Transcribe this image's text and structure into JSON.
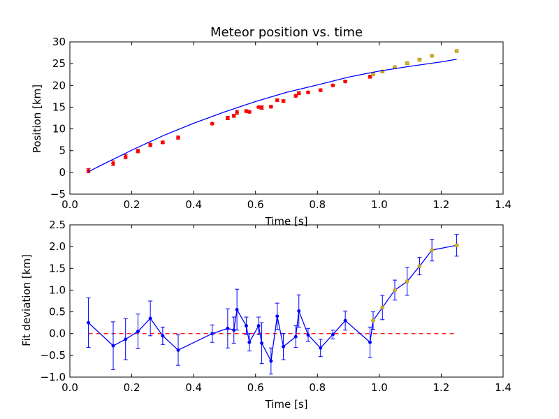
{
  "chart_data": [
    {
      "type": "scatter",
      "title": "Meteor position vs. time",
      "xlabel": "Time [s]",
      "ylabel": "Position [km]",
      "xlim": [
        0.0,
        1.4
      ],
      "ylim": [
        -5,
        30
      ],
      "xticks": [
        "0.0",
        "0.2",
        "0.4",
        "0.6",
        "0.8",
        "1.0",
        "1.2",
        "1.4"
      ],
      "yticks": [
        "−5",
        "0",
        "5",
        "10",
        "15",
        "20",
        "25",
        "30"
      ],
      "xtick_values": [
        0.0,
        0.2,
        0.4,
        0.6,
        0.8,
        1.0,
        1.2,
        1.4
      ],
      "ytick_values": [
        -5,
        0,
        5,
        10,
        15,
        20,
        25,
        30
      ],
      "grid": false,
      "series": [
        {
          "kind": "errorbar-points",
          "color": "#ff0000",
          "x": [
            0.06,
            0.14,
            0.18,
            0.22,
            0.26,
            0.3,
            0.35,
            0.46,
            0.51,
            0.53,
            0.54,
            0.57,
            0.58,
            0.61,
            0.62,
            0.65,
            0.67,
            0.69,
            0.73,
            0.74,
            0.77,
            0.81,
            0.85,
            0.89,
            0.97
          ],
          "y": [
            0.4,
            2.1,
            3.6,
            4.9,
            6.3,
            6.9,
            8.0,
            11.2,
            12.5,
            13.0,
            13.8,
            14.1,
            13.9,
            15.0,
            14.9,
            15.1,
            16.6,
            16.4,
            17.6,
            18.2,
            18.4,
            18.9,
            20.0,
            20.9,
            22.0
          ],
          "err": [
            0.5,
            0.55,
            0.5,
            0.4,
            0.4,
            0.3,
            0.35,
            0.2,
            0.4,
            0.35,
            0.45,
            0.3,
            0.25,
            0.2,
            0.4,
            0.3,
            0.3,
            0.3,
            0.3,
            0.35,
            0.2,
            0.3,
            0.25,
            0.2,
            0.35
          ]
        },
        {
          "kind": "errorbar-points",
          "color": "#d4b020",
          "x": [
            0.98,
            1.01,
            1.05,
            1.09,
            1.13,
            1.17,
            1.25
          ],
          "y": [
            22.6,
            23.2,
            24.2,
            25.1,
            25.9,
            26.8,
            27.9
          ],
          "err": [
            0.3,
            0.3,
            0.25,
            0.3,
            0.3,
            0.25,
            0.3
          ]
        },
        {
          "kind": "fit-line",
          "color": "#0000ff",
          "x": [
            0.06,
            0.1,
            0.2,
            0.3,
            0.4,
            0.5,
            0.6,
            0.7,
            0.8,
            0.9,
            1.0,
            1.1,
            1.2,
            1.25
          ],
          "y": [
            0.15,
            1.6,
            5.1,
            8.4,
            11.3,
            13.9,
            16.3,
            18.4,
            20.1,
            21.9,
            23.3,
            24.4,
            25.4,
            26.0
          ]
        }
      ]
    },
    {
      "type": "line",
      "title": "",
      "xlabel": "Time [s]",
      "ylabel": "Fit deviation [km]",
      "xlim": [
        0.0,
        1.4
      ],
      "ylim": [
        -1.0,
        2.5
      ],
      "xticks": [
        "0.0",
        "0.2",
        "0.4",
        "0.6",
        "0.8",
        "1.0",
        "1.2",
        "1.4"
      ],
      "yticks": [
        "−1.0",
        "−0.5",
        "0.0",
        "0.5",
        "1.0",
        "1.5",
        "2.0",
        "2.5"
      ],
      "xtick_values": [
        0.0,
        0.2,
        0.4,
        0.6,
        0.8,
        1.0,
        1.2,
        1.4
      ],
      "ytick_values": [
        -1.0,
        -0.5,
        0.0,
        0.5,
        1.0,
        1.5,
        2.0,
        2.5
      ],
      "grid": false,
      "reference_line": {
        "y": 0.0,
        "x": [
          0.06,
          1.25
        ],
        "color": "#ff0000",
        "style": "dashed"
      },
      "series": [
        {
          "kind": "line-errorbar",
          "color": "#0000ff",
          "x": [
            0.06,
            0.14,
            0.18,
            0.22,
            0.26,
            0.3,
            0.35,
            0.46,
            0.51,
            0.53,
            0.54,
            0.57,
            0.58,
            0.61,
            0.62,
            0.65,
            0.67,
            0.69,
            0.73,
            0.74,
            0.77,
            0.81,
            0.85,
            0.89,
            0.97,
            0.98,
            1.01,
            1.05,
            1.09,
            1.13,
            1.17,
            1.25
          ],
          "y": [
            0.25,
            -0.28,
            -0.13,
            0.05,
            0.35,
            -0.05,
            -0.38,
            0.0,
            0.12,
            0.08,
            0.55,
            0.18,
            -0.2,
            0.18,
            -0.22,
            -0.63,
            0.4,
            -0.3,
            -0.07,
            0.52,
            -0.03,
            -0.33,
            -0.02,
            0.3,
            -0.2,
            0.3,
            0.6,
            1.0,
            1.2,
            1.55,
            1.92,
            2.03
          ],
          "err": [
            0.57,
            0.55,
            0.47,
            0.4,
            0.4,
            0.2,
            0.35,
            0.2,
            0.45,
            0.3,
            0.47,
            0.2,
            0.2,
            0.2,
            0.47,
            0.3,
            0.3,
            0.3,
            0.25,
            0.37,
            0.15,
            0.2,
            0.1,
            0.22,
            0.35,
            0.2,
            0.28,
            0.23,
            0.32,
            0.2,
            0.25,
            0.25
          ]
        },
        {
          "kind": "points",
          "color": "#d4b020",
          "x": [
            0.98,
            1.01,
            1.05,
            1.09,
            1.13,
            1.17,
            1.25
          ],
          "y": [
            0.3,
            0.6,
            1.0,
            1.2,
            1.55,
            1.92,
            2.03
          ]
        }
      ]
    }
  ]
}
